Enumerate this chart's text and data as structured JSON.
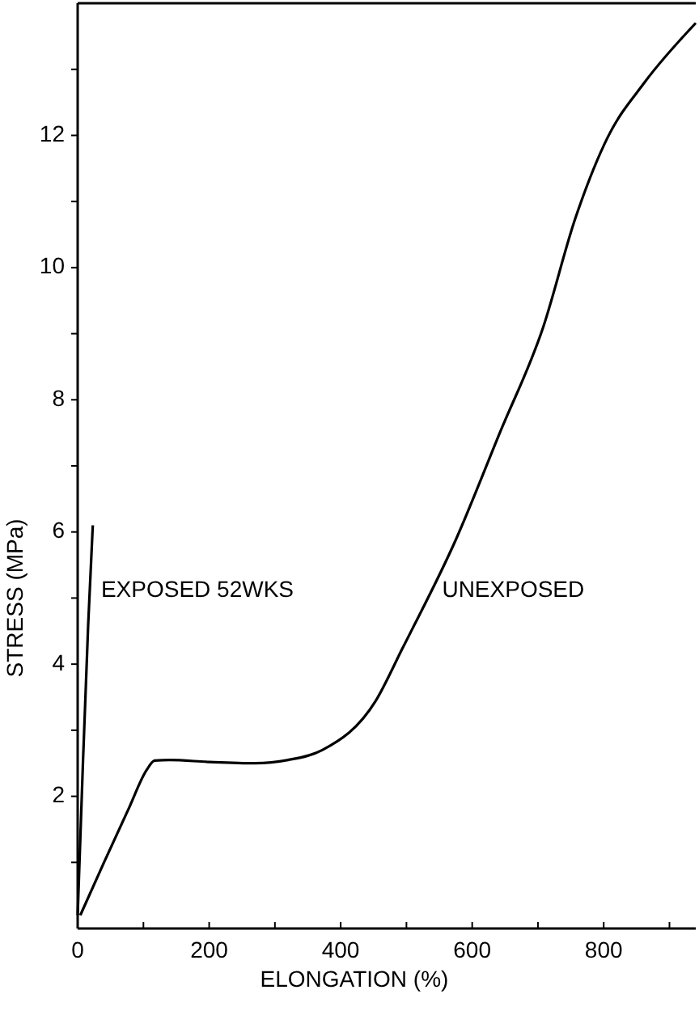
{
  "chart_data": {
    "type": "line",
    "xlabel": "ELONGATION (%)",
    "ylabel": "STRESS (MPa)",
    "xlim": [
      0,
      940
    ],
    "ylim": [
      0,
      14
    ],
    "xticks": [
      0,
      {
        "value": 100,
        "label": null
      },
      200,
      {
        "value": 300,
        "label": null
      },
      400,
      {
        "value": 500,
        "label": null
      },
      600,
      {
        "value": 700,
        "label": null
      },
      800,
      {
        "value": 900,
        "label": null
      }
    ],
    "yticks": [
      {
        "value": 1,
        "label": null
      },
      2,
      {
        "value": 3,
        "label": null
      },
      4,
      {
        "value": 5,
        "label": null
      },
      6,
      {
        "value": 7,
        "label": null
      },
      8,
      {
        "value": 9,
        "label": null
      },
      10,
      {
        "value": 11,
        "label": null
      },
      12,
      {
        "value": 13,
        "label": null
      }
    ],
    "marker": "none",
    "line_style": "solid",
    "series": [
      {
        "name": "EXPOSED 52WKS",
        "color": "#000000",
        "x": [
          0,
          8,
          16,
          23
        ],
        "values": [
          0.2,
          2.5,
          4.6,
          6.1
        ]
      },
      {
        "name": "UNEXPOSED",
        "color": "#000000",
        "x": [
          4,
          40,
          77,
          105,
          117,
          140,
          200,
          270,
          320,
          372,
          453,
          494,
          575,
          642,
          708,
          757,
          806,
          862,
          940
        ],
        "values": [
          0.2,
          1.0,
          1.8,
          2.4,
          2.54,
          2.55,
          2.52,
          2.5,
          2.55,
          2.7,
          3.44,
          4.24,
          5.88,
          7.5,
          9.1,
          10.75,
          11.97,
          12.8,
          13.7
        ]
      }
    ]
  }
}
